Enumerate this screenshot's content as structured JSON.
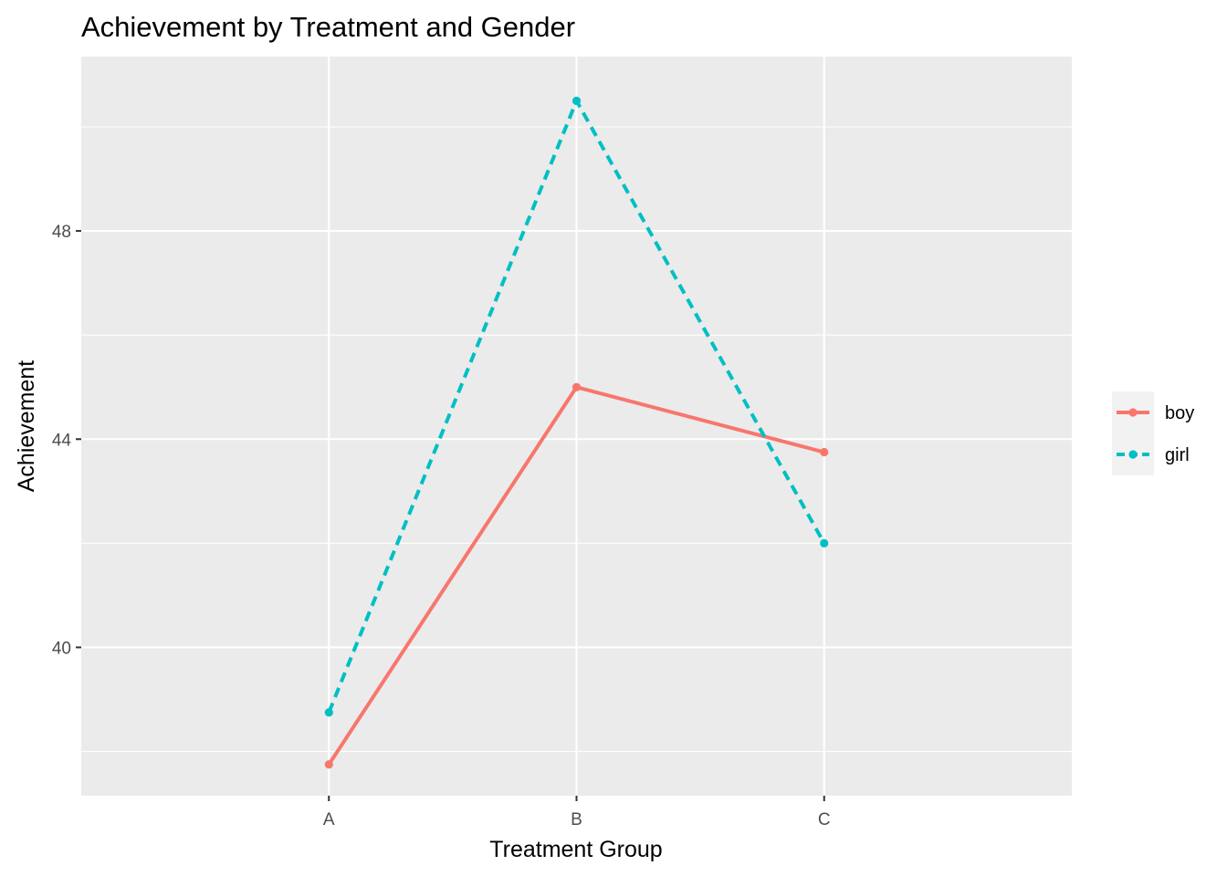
{
  "chart_data": {
    "type": "line",
    "title": "Achievement by Treatment and Gender",
    "xlabel": "Treatment Group",
    "ylabel": "Achievement",
    "categories": [
      "A",
      "B",
      "C"
    ],
    "yticks": [
      40,
      44,
      48
    ],
    "ylim": [
      37.15,
      51.35
    ],
    "grid": true,
    "legend_position": "right",
    "series": [
      {
        "name": "boy",
        "color": "#F8766D",
        "linestyle": "solid",
        "values": [
          37.75,
          45.0,
          43.75
        ]
      },
      {
        "name": "girl",
        "color": "#00BFC4",
        "linestyle": "dashed",
        "values": [
          38.75,
          50.5,
          42.0
        ]
      }
    ]
  },
  "colors": {
    "panel_background": "#EBEBEB",
    "grid_line": "#FFFFFF",
    "legend_key_background": "#F2F2F2"
  }
}
